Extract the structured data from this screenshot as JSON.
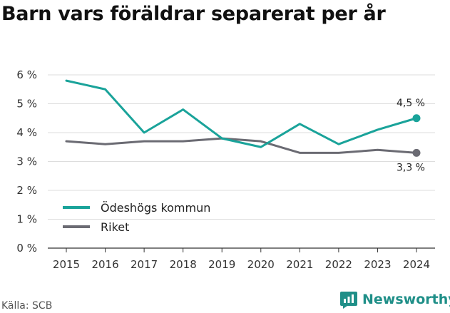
{
  "title": "Barn vars föräldrar separerat per år",
  "source": "Källa: SCB",
  "brand": {
    "name": "Newsworthy",
    "color": "#1f8f88",
    "icon": "newsworthy-logo-icon"
  },
  "chart_data": {
    "type": "line",
    "title": "Barn vars föräldrar separerat per år",
    "x": [
      "2015",
      "2016",
      "2017",
      "2018",
      "2019",
      "2020",
      "2021",
      "2022",
      "2023",
      "2024"
    ],
    "series": [
      {
        "name": "Ödeshögs kommun",
        "color": "#1aa39a",
        "values": [
          5.8,
          5.5,
          4.0,
          4.8,
          3.8,
          3.5,
          4.3,
          3.6,
          4.1,
          4.5
        ],
        "end_label": "4,5 %"
      },
      {
        "name": "Riket",
        "color": "#6b6b73",
        "values": [
          3.7,
          3.6,
          3.7,
          3.7,
          3.8,
          3.7,
          3.3,
          3.3,
          3.4,
          3.3
        ],
        "end_label": "3,3 %"
      }
    ],
    "yticks": [
      "0 %",
      "1 %",
      "2 %",
      "3 %",
      "4 %",
      "5 %",
      "6 %"
    ],
    "ylim": [
      0,
      6
    ],
    "grid": true,
    "legend": "bottom-left"
  }
}
